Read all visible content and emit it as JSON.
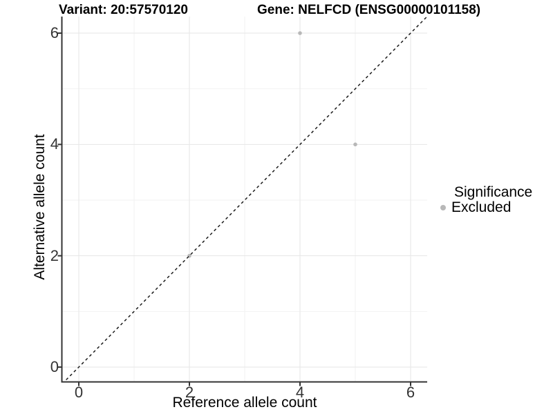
{
  "chart_data": {
    "type": "scatter",
    "title_left": "Variant: 20:57570120",
    "title_right": "Gene: NELFCD (ENSG00000101158)",
    "xlabel": "Reference allele count",
    "ylabel": "Alternative allele count",
    "xlim": [
      -0.3,
      6.3
    ],
    "ylim": [
      -0.3,
      6.3
    ],
    "x_ticks": [
      0,
      2,
      4,
      6
    ],
    "y_ticks": [
      0,
      2,
      4,
      6
    ],
    "x_minor_ticks": [
      1,
      3,
      5
    ],
    "y_minor_ticks": [
      1,
      3,
      5
    ],
    "grid": "on",
    "series": [
      {
        "name": "Excluded",
        "color": "#b8b8b8",
        "points": [
          {
            "x": 2,
            "y": 2
          },
          {
            "x": 4,
            "y": 6
          },
          {
            "x": 5,
            "y": 4
          }
        ]
      }
    ],
    "reference_line": {
      "type": "identity y=x",
      "style": "dashed",
      "color": "#1a1a1a"
    },
    "legend": {
      "position": "right",
      "title": "Significance",
      "items": [
        {
          "label": "Excluded",
          "color": "#b8b8b8"
        }
      ]
    },
    "colors": {
      "axis_line": "#333333",
      "tick_text": "#333333",
      "grid_major": "#e6e6e6",
      "grid_minor": "#f2f2f2",
      "point": "#b8b8b8",
      "background": "#ffffff"
    }
  }
}
